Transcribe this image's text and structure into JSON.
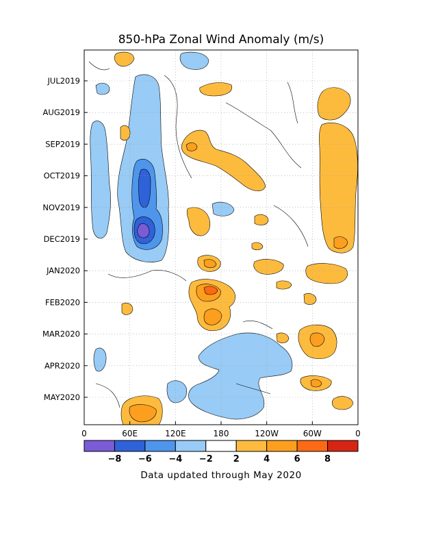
{
  "chart_data": {
    "type": "heatmap",
    "title": "850-hPa Zonal Wind Anomaly (m/s)",
    "xlabel": "",
    "ylabel": "",
    "x_ticks": [
      "0",
      "60E",
      "120E",
      "180",
      "120W",
      "60W",
      "0"
    ],
    "y_ticks": [
      "JUL2019",
      "AUG2019",
      "SEP2019",
      "OCT2019",
      "NOV2019",
      "DEC2019",
      "JAN2020",
      "FEB2020",
      "MAR2020",
      "APR2020",
      "MAY2020"
    ],
    "colorbar": {
      "labels": [
        "-8",
        "-6",
        "-4",
        "-2",
        "2",
        "4",
        "6",
        "8"
      ],
      "colors": [
        "#7b5cd6",
        "#2f62d8",
        "#4e95ec",
        "#98cbf5",
        "#ffffff",
        "#fdbb3e",
        "#fd9f1e",
        "#fb6a14",
        "#d62514"
      ]
    },
    "grid": true,
    "footnote": "Data updated through May 2020"
  }
}
